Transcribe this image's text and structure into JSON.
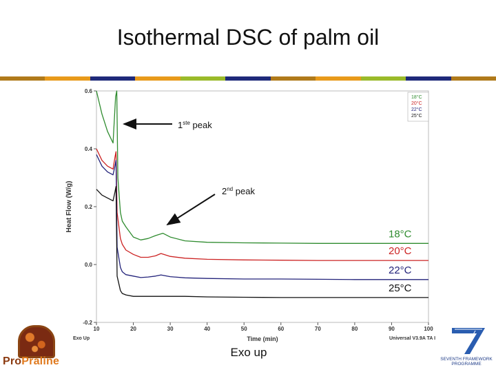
{
  "title": "Isothermal DSC of palm oil",
  "stripe_colors": [
    "#b07a1a",
    "#e89a1a",
    "#1f2a7a",
    "#e89a1a",
    "#9aba2a",
    "#1f2a7a",
    "#b07a1a",
    "#e89a1a",
    "#9aba2a",
    "#1f2a7a",
    "#b07a1a"
  ],
  "chart_data": {
    "type": "line",
    "xlabel": "Time (min)",
    "ylabel": "Heat Flow (W/g)",
    "xlim": [
      10,
      100
    ],
    "ylim": [
      -0.2,
      0.6
    ],
    "x_ticks": [
      "10",
      "20",
      "30",
      "40",
      "50",
      "60",
      "70",
      "80",
      "90",
      "100"
    ],
    "y_ticks": [
      "0.6",
      "0.4",
      "0.2",
      "0.0",
      "-0.2"
    ],
    "exo_label": "Exo Up",
    "software_label": "Universal V3.9A TA I",
    "series": [
      {
        "name": "18°C",
        "color": "#2e8b2e",
        "x": [
          10,
          11.5,
          13,
          14.5,
          15.2,
          15.5,
          15.8,
          16.5,
          17,
          18,
          20,
          22,
          24,
          26,
          28,
          30,
          34,
          40,
          50,
          60,
          70,
          80,
          90,
          100
        ],
        "y": [
          0.6,
          0.52,
          0.46,
          0.42,
          0.58,
          0.6,
          0.3,
          0.18,
          0.15,
          0.13,
          0.095,
          0.085,
          0.09,
          0.1,
          0.108,
          0.095,
          0.082,
          0.077,
          0.075,
          0.074,
          0.073,
          0.073,
          0.073,
          0.073
        ]
      },
      {
        "name": "20°C",
        "color": "#cc2222",
        "x": [
          10,
          11.5,
          13,
          14.5,
          15.0,
          15.3,
          15.6,
          16.5,
          17,
          18,
          20,
          22,
          24,
          26,
          27.5,
          30,
          34,
          40,
          50,
          60,
          70,
          80,
          90,
          100
        ],
        "y": [
          0.4,
          0.36,
          0.34,
          0.33,
          0.37,
          0.39,
          0.18,
          0.09,
          0.07,
          0.05,
          0.035,
          0.025,
          0.025,
          0.03,
          0.038,
          0.028,
          0.022,
          0.018,
          0.016,
          0.015,
          0.014,
          0.014,
          0.014,
          0.014
        ]
      },
      {
        "name": "22°C",
        "color": "#22227a",
        "x": [
          10,
          11.5,
          13,
          14.5,
          15.0,
          15.3,
          15.6,
          16.5,
          17,
          18,
          20,
          22,
          24,
          26,
          27.5,
          30,
          34,
          40,
          50,
          60,
          70,
          80,
          90,
          100
        ],
        "y": [
          0.38,
          0.34,
          0.32,
          0.31,
          0.34,
          0.36,
          0.06,
          -0.01,
          -0.025,
          -0.035,
          -0.04,
          -0.045,
          -0.043,
          -0.04,
          -0.036,
          -0.042,
          -0.046,
          -0.048,
          -0.05,
          -0.05,
          -0.051,
          -0.052,
          -0.052,
          -0.052
        ]
      },
      {
        "name": "25°C",
        "color": "#111111",
        "x": [
          10,
          11.5,
          13,
          14.5,
          15.0,
          15.3,
          15.6,
          16.5,
          17,
          18,
          20,
          22,
          24,
          26,
          28,
          30,
          34,
          40,
          50,
          60,
          70,
          80,
          90,
          100
        ],
        "y": [
          0.26,
          0.24,
          0.23,
          0.22,
          0.25,
          0.27,
          -0.04,
          -0.09,
          -0.1,
          -0.105,
          -0.11,
          -0.11,
          -0.11,
          -0.11,
          -0.11,
          -0.11,
          -0.11,
          -0.112,
          -0.113,
          -0.114,
          -0.114,
          -0.114,
          -0.114,
          -0.114
        ]
      }
    ],
    "legend_small": [
      "18°C",
      "20°C",
      "22°C",
      "25°C"
    ],
    "legend_placement": "top-right",
    "annotations": {
      "first_peak": "1ste peak",
      "first_peak_main": "1",
      "first_peak_sup": "ste",
      "first_peak_tail": " peak",
      "second_peak": "2nd peak",
      "second_peak_main": "2",
      "second_peak_sup": "nd",
      "second_peak_tail": " peak"
    },
    "big_labels": [
      "18°C",
      "20°C",
      "22°C",
      "25°C"
    ]
  },
  "footer_caption": "Exo up",
  "logo_left": {
    "part1": "Pro",
    "part2": "Praline"
  },
  "logo_right": {
    "line1": "SEVENTH FRAMEWORK",
    "line2": "PROGRAMME"
  }
}
